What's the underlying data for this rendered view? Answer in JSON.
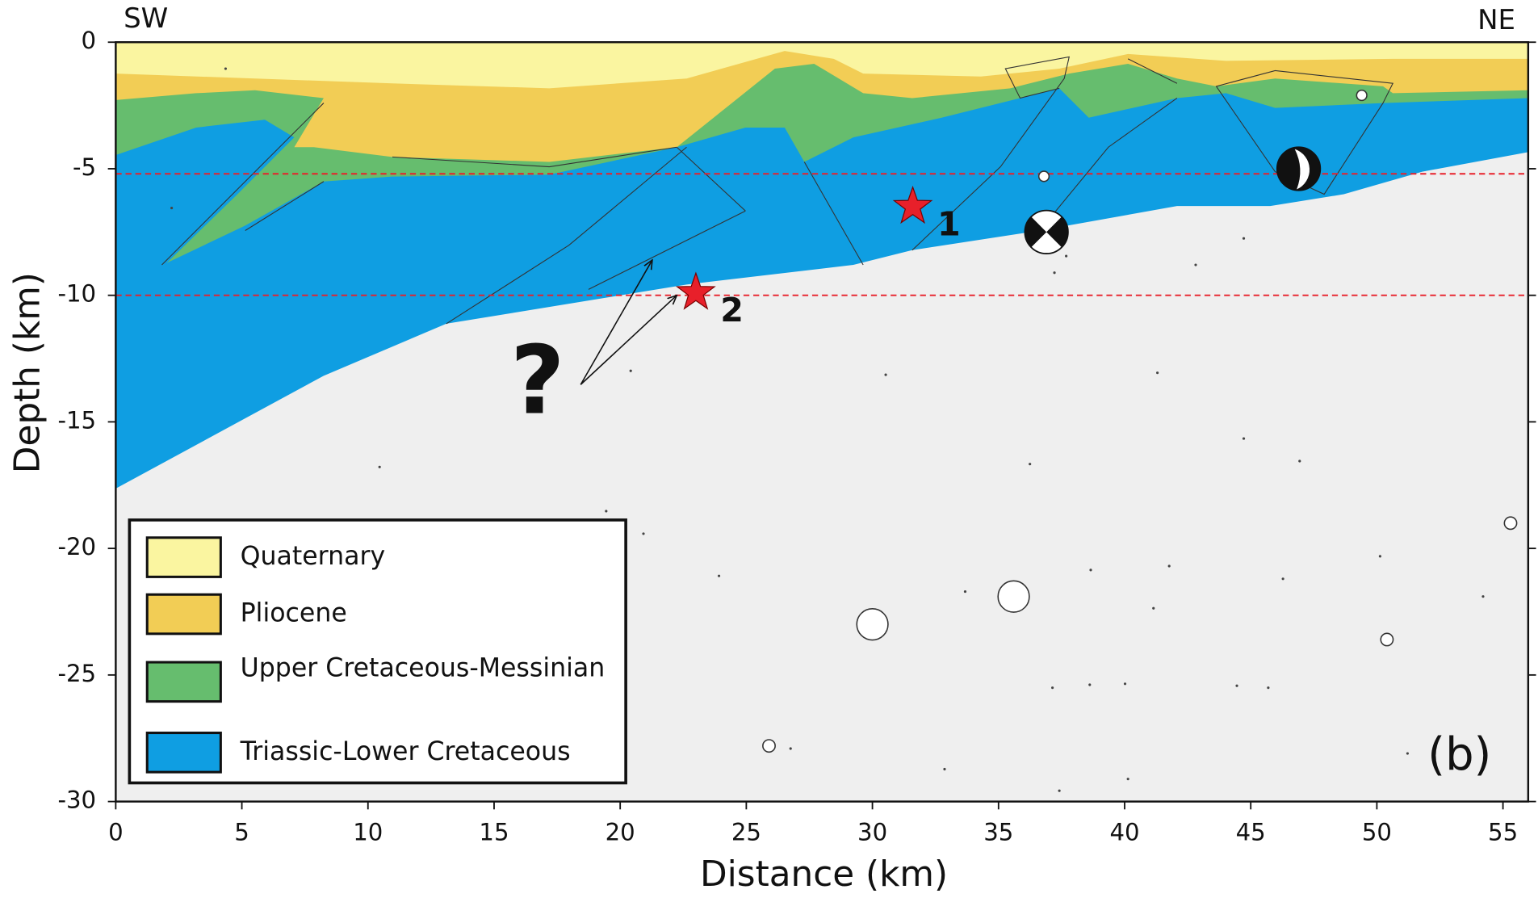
{
  "chart_data": {
    "type": "cross-section",
    "corner_labels": {
      "left": "SW",
      "right": "NE"
    },
    "panel_label": "(b)",
    "x_label": "Distance (km)",
    "y_label": "Depth (km)",
    "xlim": [
      0,
      56
    ],
    "ylim": [
      -30,
      0
    ],
    "xticks": [
      0,
      5,
      10,
      15,
      20,
      25,
      30,
      35,
      40,
      45,
      50,
      55
    ],
    "yticks": [
      -30,
      -25,
      -20,
      -15,
      -10,
      -5,
      0
    ],
    "legend": [
      {
        "name": "Quaternary",
        "color": "#faf5a0"
      },
      {
        "name": "Pliocene",
        "color": "#f2cd55"
      },
      {
        "name": "Upper Cretaceous-Messinian",
        "color": "#66bd6e"
      },
      {
        "name": "Triassic-Lower Cretaceous",
        "color": "#0f9ee2"
      }
    ],
    "reference_depths": [
      -5.2,
      -10
    ],
    "reference_color": "#e8202a",
    "hypocenters": {
      "labels": [
        "1",
        "2"
      ],
      "x": [
        31.6,
        23.0
      ],
      "y": [
        -6.5,
        -9.9
      ],
      "color": "#e8202a"
    },
    "question_mark": "?",
    "focal_mechanisms": {
      "x": [
        36.9,
        46.9
      ],
      "y": [
        -7.5,
        -5.0
      ]
    },
    "events": {
      "x": [
        30.0,
        35.6,
        25.9,
        50.4,
        55.3,
        36.8,
        49.4
      ],
      "y": [
        -23.0,
        -21.9,
        -27.8,
        -23.6,
        -19.0,
        -5.3,
        -2.1
      ],
      "size": [
        3.5,
        3.5,
        2.2,
        2.2,
        2.2,
        2.0,
        2.0
      ]
    }
  }
}
